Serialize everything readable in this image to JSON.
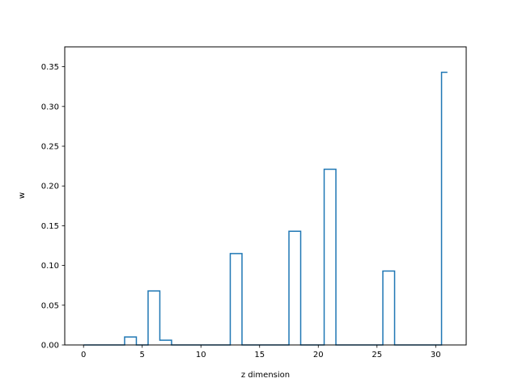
{
  "chart_data": {
    "type": "step",
    "title": "",
    "xlabel": "z dimension",
    "ylabel": "w",
    "xlim": [
      -1.6,
      32.6
    ],
    "ylim": [
      0,
      0.375
    ],
    "xticks": [
      0,
      5,
      10,
      15,
      20,
      25,
      30
    ],
    "yticks": [
      0.0,
      0.05,
      0.1,
      0.15,
      0.2,
      0.25,
      0.3,
      0.35
    ],
    "xtick_labels": [
      "0",
      "5",
      "10",
      "15",
      "20",
      "25",
      "30"
    ],
    "ytick_labels": [
      "0.00",
      "0.05",
      "0.10",
      "0.15",
      "0.20",
      "0.25",
      "0.30",
      "0.35"
    ],
    "grid": false,
    "step_where": "mid",
    "x": [
      0,
      1,
      2,
      3,
      4,
      5,
      6,
      7,
      8,
      9,
      10,
      11,
      12,
      13,
      14,
      15,
      16,
      17,
      18,
      19,
      20,
      21,
      22,
      23,
      24,
      25,
      26,
      27,
      28,
      29,
      30,
      31
    ],
    "values": [
      0,
      0,
      0,
      0,
      0.01,
      0,
      0.068,
      0.006,
      0,
      0,
      0,
      0,
      0,
      0.115,
      0,
      0,
      0,
      0,
      0.143,
      0,
      0,
      0.221,
      0,
      0,
      0,
      0,
      0.093,
      0,
      0,
      0,
      0,
      0.343
    ],
    "color": "#1f77b4"
  }
}
